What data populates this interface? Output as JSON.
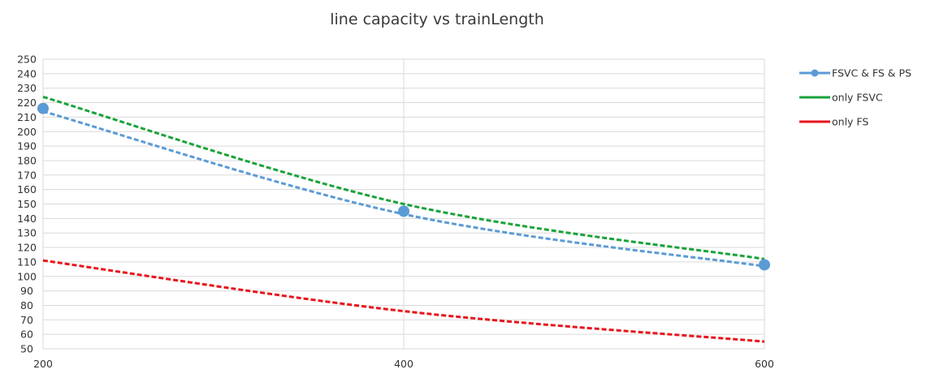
{
  "chart_data": {
    "type": "line",
    "title": "line capacity vs trainLength",
    "xlabel": "",
    "ylabel": "",
    "x": [
      200,
      400,
      600
    ],
    "xlim": [
      200,
      600
    ],
    "ylim": [
      50,
      250
    ],
    "yticks": [
      50,
      60,
      70,
      80,
      90,
      100,
      110,
      120,
      130,
      140,
      150,
      160,
      170,
      180,
      190,
      200,
      210,
      220,
      230,
      240,
      250
    ],
    "xticks": [
      200,
      400,
      600
    ],
    "grid": true,
    "legend_position": "right",
    "series": [
      {
        "name": "FSVC & FS & PS",
        "values": [
          216,
          145,
          108
        ],
        "color": "#5b9bd5",
        "markers": true,
        "trendline": [
          214,
          143,
          107
        ]
      },
      {
        "name": "only FSVC",
        "values": [
          224,
          150,
          112
        ],
        "color": "#1aa339",
        "markers": false
      },
      {
        "name": "only FS",
        "values": [
          111,
          76,
          55
        ],
        "color": "#e8141c",
        "markers": false
      }
    ]
  }
}
